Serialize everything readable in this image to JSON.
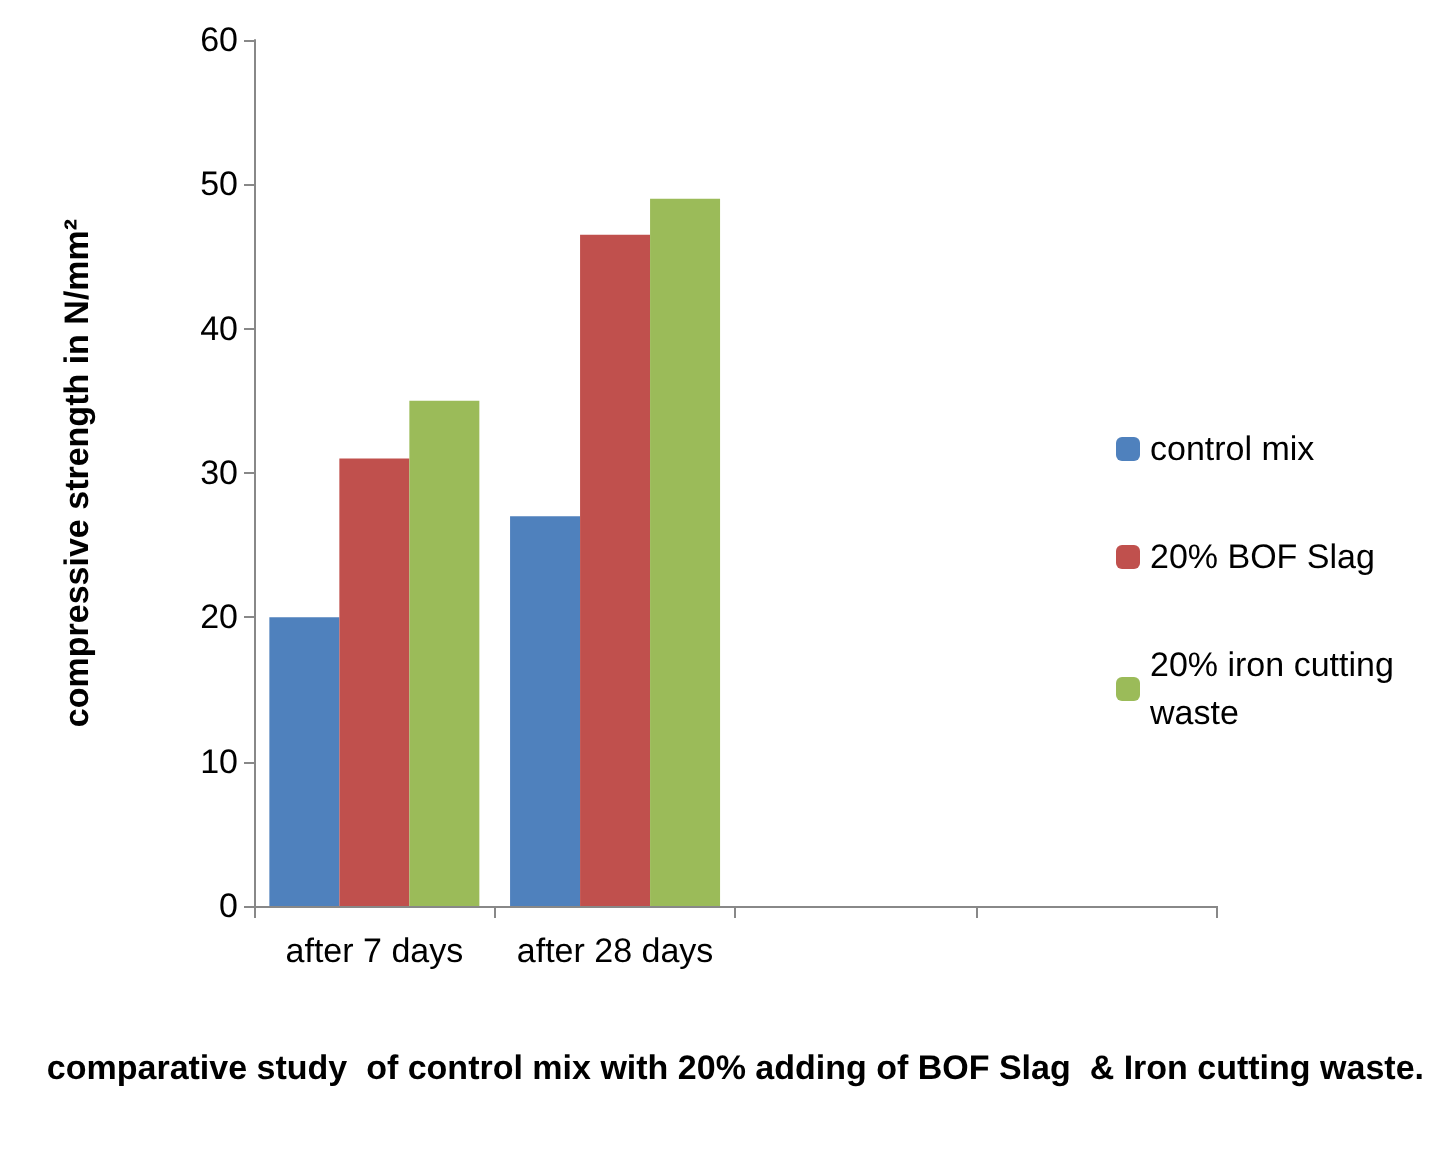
{
  "chart_data": {
    "type": "bar",
    "xlabel": "comparative study  of control mix with 20% adding of BOF Slag  & Iron cutting waste.",
    "ylabel": "compressive strength in N/mm²",
    "categories": [
      "after 7 days",
      "after 28 days",
      null,
      null
    ],
    "series": [
      {
        "name": "control mix",
        "color": "#4f81bd",
        "values": [
          20,
          27,
          null,
          null
        ]
      },
      {
        "name": "20% BOF Slag",
        "color": "#c0504d",
        "values": [
          31,
          46.5,
          null,
          null
        ]
      },
      {
        "name": "20% iron cutting waste",
        "color": "#9bbb59",
        "values": [
          35,
          49,
          null,
          null
        ]
      }
    ],
    "ylim": [
      0,
      60
    ],
    "yticks": [
      0,
      10,
      20,
      30,
      40,
      50,
      60
    ],
    "grid": false,
    "legend": "right"
  }
}
